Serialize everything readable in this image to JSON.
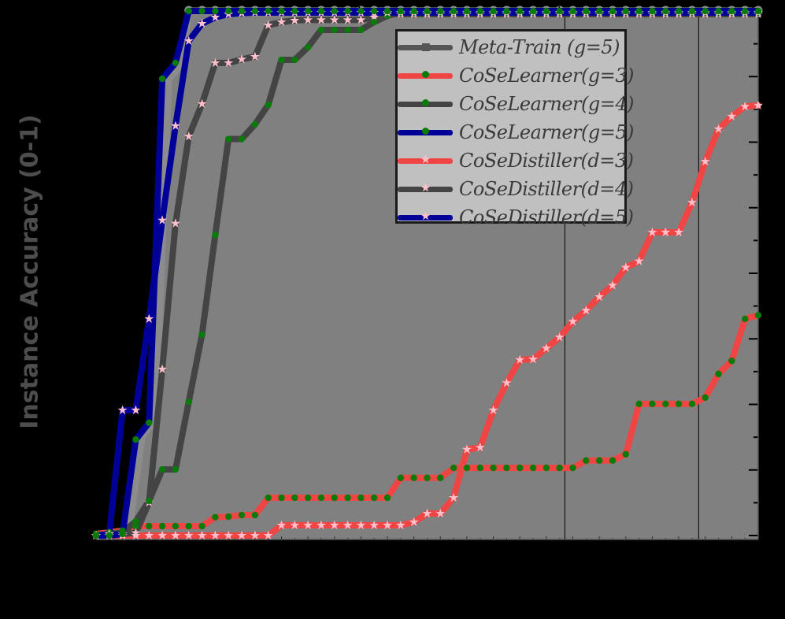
{
  "chart_data": {
    "type": "line",
    "title": "",
    "xlabel": "",
    "ylabel": "Instance Accuracy (0-1)",
    "ylim": [
      0,
      1
    ],
    "xlim": [
      0,
      50
    ],
    "grid": false,
    "vertical_lines_x_index": [
      35.4,
      45.5
    ],
    "legend_position": "upper right (inset)",
    "x": [
      0,
      1,
      2,
      3,
      4,
      5,
      6,
      7,
      8,
      9,
      10,
      11,
      12,
      13,
      14,
      15,
      16,
      17,
      18,
      19,
      20,
      21,
      22,
      23,
      24,
      25,
      26,
      27,
      28,
      29,
      30,
      31,
      32,
      33,
      34,
      35,
      36,
      37,
      38,
      39,
      40,
      41,
      42,
      43,
      44,
      45,
      46,
      47,
      48,
      49,
      50
    ],
    "series": [
      {
        "name": "Meta-Train (g=5)",
        "color": "#7f7f7f",
        "marker": "square",
        "filled": true,
        "values": [
          0.0,
          0.005,
          0.01,
          0.19,
          0.22,
          0.87,
          0.9,
          1.0,
          1.0,
          1.0,
          1.0,
          1.0,
          1.0,
          1.0,
          1.0,
          1.0,
          1.0,
          1.0,
          1.0,
          1.0,
          1.0,
          1.0,
          1.0,
          1.0,
          1.0,
          1.0,
          1.0,
          1.0,
          1.0,
          1.0,
          1.0,
          1.0,
          1.0,
          1.0,
          1.0,
          1.0,
          1.0,
          1.0,
          1.0,
          1.0,
          1.0,
          1.0,
          1.0,
          1.0,
          1.0,
          1.0,
          1.0,
          1.0,
          1.0,
          1.0,
          1.0
        ]
      },
      {
        "name": "CoSeLearner(g=3)",
        "color": "#f04545",
        "marker": "dot",
        "marker_color": "#0a7a0a",
        "values": [
          0.003,
          0.006,
          0.009,
          0.018,
          0.018,
          0.018,
          0.018,
          0.018,
          0.018,
          0.035,
          0.036,
          0.039,
          0.039,
          0.072,
          0.072,
          0.072,
          0.072,
          0.072,
          0.072,
          0.072,
          0.072,
          0.072,
          0.072,
          0.11,
          0.11,
          0.11,
          0.11,
          0.129,
          0.129,
          0.129,
          0.129,
          0.129,
          0.129,
          0.129,
          0.129,
          0.129,
          0.129,
          0.143,
          0.143,
          0.143,
          0.155,
          0.251,
          0.251,
          0.251,
          0.251,
          0.251,
          0.263,
          0.308,
          0.333,
          0.413,
          0.42
        ]
      },
      {
        "name": "CoSeLearner(g=4)",
        "color": "#444444",
        "marker": "dot",
        "marker_color": "#0a7a0a",
        "values": [
          0.0,
          0.003,
          0.006,
          0.027,
          0.066,
          0.126,
          0.126,
          0.255,
          0.383,
          0.573,
          0.756,
          0.756,
          0.784,
          0.821,
          0.907,
          0.907,
          0.931,
          0.964,
          0.964,
          0.964,
          0.964,
          0.979,
          0.991,
          0.997,
          0.997,
          0.997,
          0.997,
          0.997,
          0.997,
          0.997,
          0.997,
          0.997,
          0.997,
          0.997,
          0.997,
          0.997,
          0.997,
          0.997,
          0.997,
          0.997,
          0.997,
          0.997,
          0.997,
          0.997,
          0.997,
          0.997,
          0.997,
          0.997,
          0.997,
          0.997,
          0.997
        ]
      },
      {
        "name": "CoSeLearner(g=5)",
        "color": "#000099",
        "marker": "dot",
        "marker_color": "#0a7a0a",
        "values": [
          0.0,
          0.0,
          0.003,
          0.183,
          0.215,
          0.871,
          0.901,
          1.0,
          1.0,
          1.0,
          1.0,
          1.0,
          1.0,
          1.0,
          1.0,
          1.0,
          1.0,
          1.0,
          1.0,
          1.0,
          1.0,
          1.0,
          1.0,
          1.0,
          1.0,
          1.0,
          1.0,
          1.0,
          1.0,
          1.0,
          1.0,
          1.0,
          1.0,
          1.0,
          1.0,
          1.0,
          1.0,
          1.0,
          1.0,
          1.0,
          1.0,
          1.0,
          1.0,
          1.0,
          1.0,
          1.0,
          1.0,
          1.0,
          1.0,
          1.0,
          1.0
        ]
      },
      {
        "name": "CoSeDistiller(d=3)",
        "color": "#f04545",
        "marker": "star",
        "marker_color": "#ffc0cb",
        "values": [
          0.0,
          0.0,
          0.0,
          0.0,
          0.0,
          0.0,
          0.0,
          0.0,
          0.0,
          0.0,
          0.0,
          0.0,
          0.0,
          0.0,
          0.0195,
          0.0195,
          0.0195,
          0.0195,
          0.0195,
          0.0195,
          0.0195,
          0.0195,
          0.0195,
          0.0195,
          0.0255,
          0.042,
          0.042,
          0.072,
          0.164,
          0.168,
          0.239,
          0.291,
          0.335,
          0.336,
          0.357,
          0.378,
          0.408,
          0.429,
          0.455,
          0.477,
          0.511,
          0.523,
          0.578,
          0.578,
          0.578,
          0.635,
          0.713,
          0.775,
          0.799,
          0.818,
          0.82
        ]
      },
      {
        "name": "CoSeDistiller(d=4)",
        "color": "#444444",
        "marker": "star",
        "marker_color": "#ffc0cb",
        "values": [
          0.0,
          0.0,
          0.003,
          0.005,
          0.063,
          0.317,
          0.595,
          0.761,
          0.823,
          0.901,
          0.901,
          0.908,
          0.913,
          0.973,
          0.979,
          0.982,
          0.983,
          0.983,
          0.983,
          0.983,
          0.983,
          0.988,
          0.994,
          0.994,
          0.994,
          0.994,
          0.994,
          0.994,
          0.994,
          0.994,
          0.994,
          0.994,
          0.994,
          0.994,
          0.994,
          0.994,
          0.994,
          0.994,
          0.994,
          0.994,
          0.994,
          0.994,
          0.994,
          0.994,
          0.994,
          0.994,
          0.994,
          0.994,
          0.994,
          0.994,
          0.994
        ]
      },
      {
        "name": "CoSeDistiller(d=5)",
        "color": "#000099",
        "marker": "star",
        "marker_color": "#ffc0cb",
        "values": [
          0.0,
          0.003,
          0.239,
          0.239,
          0.413,
          0.601,
          0.781,
          0.943,
          0.976,
          0.988,
          0.994,
          0.996,
          0.997,
          0.997,
          0.997,
          0.997,
          0.997,
          0.997,
          0.997,
          0.997,
          0.997,
          0.997,
          0.997,
          0.997,
          0.997,
          0.997,
          0.997,
          0.997,
          0.997,
          0.997,
          0.997,
          0.997,
          0.997,
          0.997,
          0.997,
          0.997,
          0.997,
          0.997,
          0.997,
          0.997,
          0.997,
          0.997,
          0.997,
          0.997,
          0.997,
          0.997,
          0.997,
          0.997,
          0.997,
          0.997,
          0.997
        ]
      }
    ]
  },
  "axes": {
    "ylabel": "Instance Accuracy (0-1)"
  },
  "legend": {
    "items": [
      {
        "label": "Meta-Train (g=5)"
      },
      {
        "label": "CoSeLearner(g=3)"
      },
      {
        "label": "CoSeLearner(g=4)"
      },
      {
        "label": "CoSeLearner(g=5)"
      },
      {
        "label": "CoSeDistiller(d=3)"
      },
      {
        "label": "CoSeDistiller(d=4)"
      },
      {
        "label": "CoSeDistiller(d=5)"
      }
    ]
  },
  "colors": {
    "background": "#000000",
    "fill": "#808080",
    "legend_bg": "#c0c0c0",
    "red": "#f04545",
    "dark_gray": "#444444",
    "blue": "#000099",
    "green_dot": "#0a7a0a",
    "pink_star": "#ffc0cb"
  }
}
